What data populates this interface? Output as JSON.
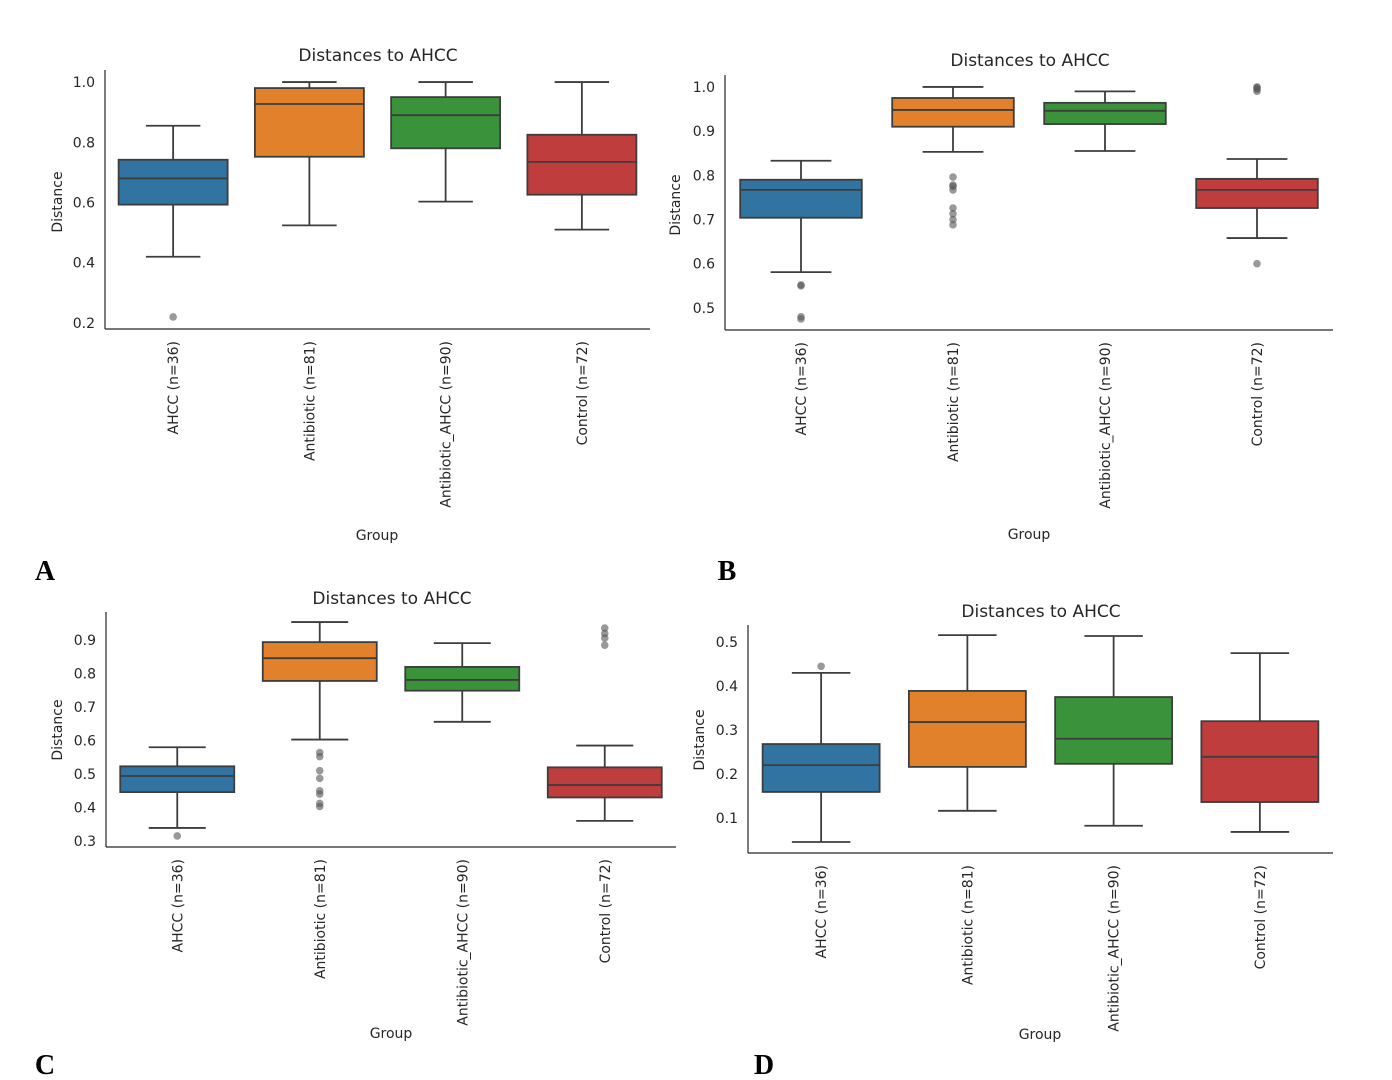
{
  "colors": {
    "AHCC": "#3274a1",
    "Antibiotic": "#e1812c",
    "Antibiotic_AHCC": "#3a923a",
    "Control": "#c03d3e",
    "line": "#3d3d3d",
    "outlier": "#808080"
  },
  "chart_data": [
    {
      "panel": "A",
      "type": "box",
      "title": "Distances to AHCC",
      "xlabel": "Group",
      "ylabel": "Distance",
      "ylim": [
        0.18,
        1.04
      ],
      "yticks": [
        0.2,
        0.4,
        0.6,
        0.8,
        1.0
      ],
      "ytick_labels": [
        "0.2",
        "0.4",
        "0.6",
        "0.8",
        "1.0"
      ],
      "categories": [
        "AHCC (n=36)",
        "Antibiotic (n=81)",
        "Antibiotic_AHCC (n=90)",
        "Control (n=72)"
      ],
      "boxes": [
        {
          "whislo": 0.42,
          "q1": 0.593,
          "med": 0.68,
          "q3": 0.742,
          "whishi": 0.855,
          "fliers": [
            0.22
          ]
        },
        {
          "whislo": 0.524,
          "q1": 0.752,
          "med": 0.927,
          "q3": 0.98,
          "whishi": 1.0,
          "fliers": []
        },
        {
          "whislo": 0.603,
          "q1": 0.78,
          "med": 0.89,
          "q3": 0.95,
          "whishi": 1.0,
          "fliers": []
        },
        {
          "whislo": 0.51,
          "q1": 0.626,
          "med": 0.735,
          "q3": 0.825,
          "whishi": 1.0,
          "fliers": []
        }
      ]
    },
    {
      "panel": "B",
      "type": "box",
      "title": "Distances to AHCC",
      "xlabel": "Group",
      "ylabel": "Distance",
      "ylim": [
        0.45,
        1.027
      ],
      "yticks": [
        0.5,
        0.6,
        0.7,
        0.8,
        0.9,
        1.0
      ],
      "ytick_labels": [
        "0.5",
        "0.6",
        "0.7",
        "0.8",
        "0.9",
        "1.0"
      ],
      "categories": [
        "AHCC (n=36)",
        "Antibiotic (n=81)",
        "Antibiotic_AHCC (n=90)",
        "Control (n=72)"
      ],
      "boxes": [
        {
          "whislo": 0.581,
          "q1": 0.704,
          "med": 0.767,
          "q3": 0.79,
          "whishi": 0.833,
          "fliers": [
            0.552,
            0.55,
            0.48,
            0.475
          ]
        },
        {
          "whislo": 0.853,
          "q1": 0.91,
          "med": 0.948,
          "q3": 0.975,
          "whishi": 1.0,
          "fliers": [
            0.796,
            0.778,
            0.775,
            0.767,
            0.726,
            0.713,
            0.7,
            0.688
          ]
        },
        {
          "whislo": 0.855,
          "q1": 0.916,
          "med": 0.946,
          "q3": 0.964,
          "whishi": 0.99,
          "fliers": []
        },
        {
          "whislo": 0.658,
          "q1": 0.726,
          "med": 0.767,
          "q3": 0.792,
          "whishi": 0.837,
          "fliers": [
            1.0,
            0.998,
            0.995,
            0.99,
            0.6
          ]
        }
      ]
    },
    {
      "panel": "C",
      "type": "box",
      "title": "Distances to AHCC",
      "xlabel": "Group",
      "ylabel": "Distance",
      "ylim": [
        0.282,
        0.984
      ],
      "yticks": [
        0.3,
        0.4,
        0.5,
        0.6,
        0.7,
        0.8,
        0.9
      ],
      "ytick_labels": [
        "0.3",
        "0.4",
        "0.5",
        "0.6",
        "0.7",
        "0.8",
        "0.9"
      ],
      "categories": [
        "AHCC (n=36)",
        "Antibiotic (n=81)",
        "Antibiotic_AHCC (n=90)",
        "Control (n=72)"
      ],
      "boxes": [
        {
          "whislo": 0.339,
          "q1": 0.446,
          "med": 0.494,
          "q3": 0.523,
          "whishi": 0.58,
          "fliers": [
            0.315
          ]
        },
        {
          "whislo": 0.603,
          "q1": 0.778,
          "med": 0.846,
          "q3": 0.894,
          "whishi": 0.954,
          "fliers": [
            0.564,
            0.552,
            0.51,
            0.487,
            0.45,
            0.44,
            0.412,
            0.403
          ]
        },
        {
          "whislo": 0.656,
          "q1": 0.749,
          "med": 0.781,
          "q3": 0.82,
          "whishi": 0.891,
          "fliers": []
        },
        {
          "whislo": 0.36,
          "q1": 0.43,
          "med": 0.467,
          "q3": 0.52,
          "whishi": 0.585,
          "fliers": [
            0.936,
            0.92,
            0.906,
            0.885
          ]
        }
      ]
    },
    {
      "panel": "D",
      "type": "box",
      "title": "Distances to AHCC",
      "xlabel": "Group",
      "ylabel": "Distance",
      "ylim": [
        0.02,
        0.539
      ],
      "yticks": [
        0.1,
        0.2,
        0.3,
        0.4,
        0.5
      ],
      "ytick_labels": [
        "0.1",
        "0.2",
        "0.3",
        "0.4",
        "0.5"
      ],
      "categories": [
        "AHCC (n=36)",
        "Antibiotic (n=81)",
        "Antibiotic_AHCC (n=90)",
        "Control (n=72)"
      ],
      "boxes": [
        {
          "whislo": 0.045,
          "q1": 0.159,
          "med": 0.22,
          "q3": 0.268,
          "whishi": 0.43,
          "fliers": [
            0.445
          ]
        },
        {
          "whislo": 0.116,
          "q1": 0.216,
          "med": 0.318,
          "q3": 0.389,
          "whishi": 0.516,
          "fliers": []
        },
        {
          "whislo": 0.082,
          "q1": 0.223,
          "med": 0.28,
          "q3": 0.375,
          "whishi": 0.514,
          "fliers": []
        },
        {
          "whislo": 0.068,
          "q1": 0.136,
          "med": 0.239,
          "q3": 0.32,
          "whishi": 0.475,
          "fliers": []
        }
      ]
    }
  ]
}
